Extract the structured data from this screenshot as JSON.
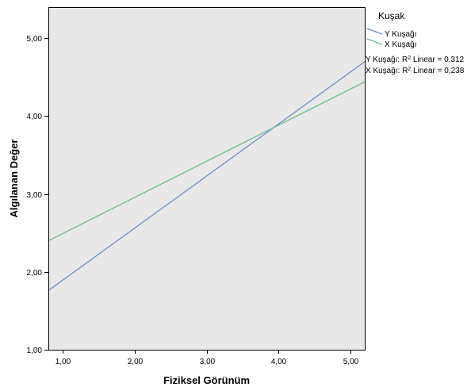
{
  "chart_data": {
    "type": "line",
    "title": "",
    "xlabel": "Fiziksel Görünüm",
    "ylabel": "Algılanan Değer",
    "xlim": [
      0.8,
      5.2
    ],
    "ylim": [
      1.0,
      5.4
    ],
    "xticks": [
      "1,00",
      "2,00",
      "3,00",
      "4,00",
      "5,00"
    ],
    "yticks": [
      "1,00",
      "2,00",
      "3,00",
      "4,00",
      "5,00"
    ],
    "x_tick_values": [
      1,
      2,
      3,
      4,
      5
    ],
    "y_tick_values": [
      1,
      2,
      3,
      4,
      5
    ],
    "grid": false,
    "legend": {
      "title": "Kuşak",
      "placement": "top-right, outside plot"
    },
    "series": [
      {
        "name": "Y Kuşağı",
        "color": "#6d8cd2",
        "x": [
          0.8,
          5.2
        ],
        "y": [
          1.76,
          4.7
        ],
        "fit_label_prefix": "Y Kuşağı: R",
        "fit_label_suffix": " Linear = 0,312"
      },
      {
        "name": "X Kuşağı",
        "color": "#6cc08b",
        "x": [
          0.8,
          5.2
        ],
        "y": [
          2.4,
          4.44
        ],
        "fit_label_prefix": "X Kuşağı: R",
        "fit_label_suffix": " Linear = 0,238"
      }
    ],
    "plot_background": "#e8e8e8"
  }
}
